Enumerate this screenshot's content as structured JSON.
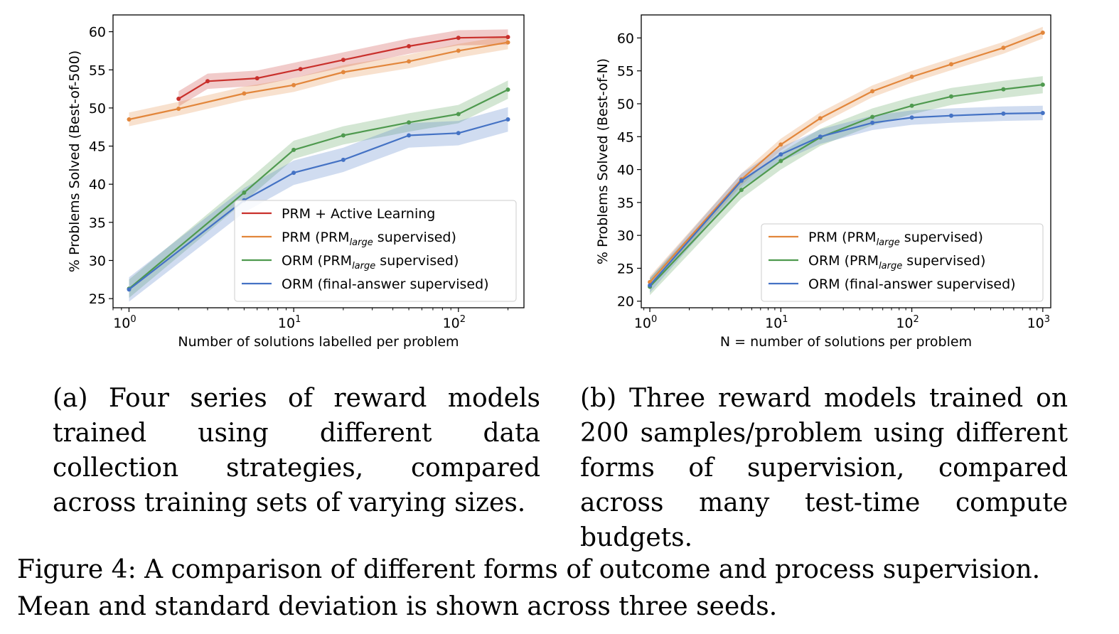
{
  "colors": {
    "prm_active": "#c9302c",
    "prm": "#e2863b",
    "orm_prm": "#4f9a4f",
    "orm_final": "#4472c4",
    "axis": "#000000"
  },
  "chart_data": [
    {
      "type": "line",
      "xscale": "log",
      "xlim": [
        0.8,
        250
      ],
      "ylim": [
        23.8,
        62.2
      ],
      "yticks": [
        25,
        30,
        35,
        40,
        45,
        50,
        55,
        60
      ],
      "xticks": [
        {
          "value": 1,
          "base": "10",
          "exp": "0"
        },
        {
          "value": 10,
          "base": "10",
          "exp": "1"
        },
        {
          "value": 100,
          "base": "10",
          "exp": "2"
        }
      ],
      "xlabel": "Number of solutions labelled per problem",
      "ylabel": "% Problems Solved (Best-of-500)",
      "legend_position": "lower-right",
      "series": [
        {
          "key": "prm_active",
          "name": "PRM + Active Learning",
          "name_pre": "PRM + Active Learning",
          "name_sub": "",
          "name_post": "",
          "x": [
            2,
            3,
            6,
            11,
            20,
            50,
            100,
            200
          ],
          "y": [
            51.2,
            53.5,
            53.9,
            55.1,
            56.3,
            58.1,
            59.2,
            59.3
          ],
          "spread": 1.0
        },
        {
          "key": "prm",
          "name": "PRM (PRMlarge supervised)",
          "name_pre": "PRM (PRM",
          "name_sub": "large",
          "name_post": " supervised)",
          "x": [
            1,
            2,
            5,
            10,
            20,
            50,
            100,
            200
          ],
          "y": [
            48.5,
            49.9,
            51.9,
            53.0,
            54.7,
            56.1,
            57.5,
            58.6
          ],
          "spread": 0.9
        },
        {
          "key": "orm_prm",
          "name": "ORM (PRMlarge supervised)",
          "name_pre": "ORM (PRM",
          "name_sub": "large",
          "name_post": " supervised)",
          "x": [
            1,
            5,
            10,
            20,
            50,
            100,
            200
          ],
          "y": [
            26.3,
            38.9,
            44.5,
            46.4,
            48.1,
            49.2,
            52.4
          ],
          "spread": 1.2
        },
        {
          "key": "orm_final",
          "name": "ORM (final-answer supervised)",
          "name_pre": "ORM (final-answer supervised)",
          "name_sub": "",
          "name_post": "",
          "x": [
            1,
            5,
            10,
            20,
            50,
            100,
            200
          ],
          "y": [
            26.2,
            37.9,
            41.5,
            43.2,
            46.4,
            46.7,
            48.5
          ],
          "spread": 1.6
        }
      ]
    },
    {
      "type": "line",
      "xscale": "log",
      "xlim": [
        0.86,
        1150
      ],
      "ylim": [
        19.0,
        63.5
      ],
      "yticks": [
        20,
        25,
        30,
        35,
        40,
        45,
        50,
        55,
        60
      ],
      "xticks": [
        {
          "value": 1,
          "base": "10",
          "exp": "0"
        },
        {
          "value": 10,
          "base": "10",
          "exp": "1"
        },
        {
          "value": 100,
          "base": "10",
          "exp": "2"
        },
        {
          "value": 1000,
          "base": "10",
          "exp": "3"
        }
      ],
      "xlabel": "N = number of solutions per problem",
      "ylabel": "% Problems Solved (Best-of-N)",
      "legend_position": "lower-right",
      "series": [
        {
          "key": "prm",
          "name": "PRM (PRMlarge supervised)",
          "name_pre": "PRM (PRM",
          "name_sub": "large",
          "name_post": " supervised)",
          "x": [
            1,
            5,
            10,
            20,
            50,
            100,
            200,
            500,
            1000
          ],
          "y": [
            22.9,
            38.5,
            43.8,
            47.8,
            51.9,
            54.1,
            56.0,
            58.5,
            60.8
          ],
          "spread": 0.9
        },
        {
          "key": "orm_prm",
          "name": "ORM (PRMlarge supervised)",
          "name_pre": "ORM (PRM",
          "name_sub": "large",
          "name_post": " supervised)",
          "x": [
            1,
            5,
            10,
            20,
            50,
            100,
            200,
            500,
            1000
          ],
          "y": [
            22.2,
            36.9,
            41.3,
            44.9,
            48.0,
            49.7,
            51.1,
            52.2,
            52.9
          ],
          "spread": 1.3
        },
        {
          "key": "orm_final",
          "name": "ORM (final-answer supervised)",
          "name_pre": "ORM (final-answer supervised)",
          "name_sub": "",
          "name_post": "",
          "x": [
            1,
            5,
            10,
            20,
            50,
            100,
            200,
            500,
            1000
          ],
          "y": [
            22.4,
            38.3,
            42.3,
            45.0,
            47.1,
            47.9,
            48.2,
            48.5,
            48.6
          ],
          "spread": 1.1
        }
      ]
    }
  ],
  "captions": {
    "a": "(a) Four series of reward models trained using different data collection strategies, compared across training sets of varying sizes.",
    "b": "(b) Three reward models trained on 200 samples/problem using different forms of supervision, compared across many test-time compute budgets.",
    "main": "Figure 4: A comparison of different forms of outcome and process supervision. Mean and standard deviation is shown across three seeds."
  }
}
